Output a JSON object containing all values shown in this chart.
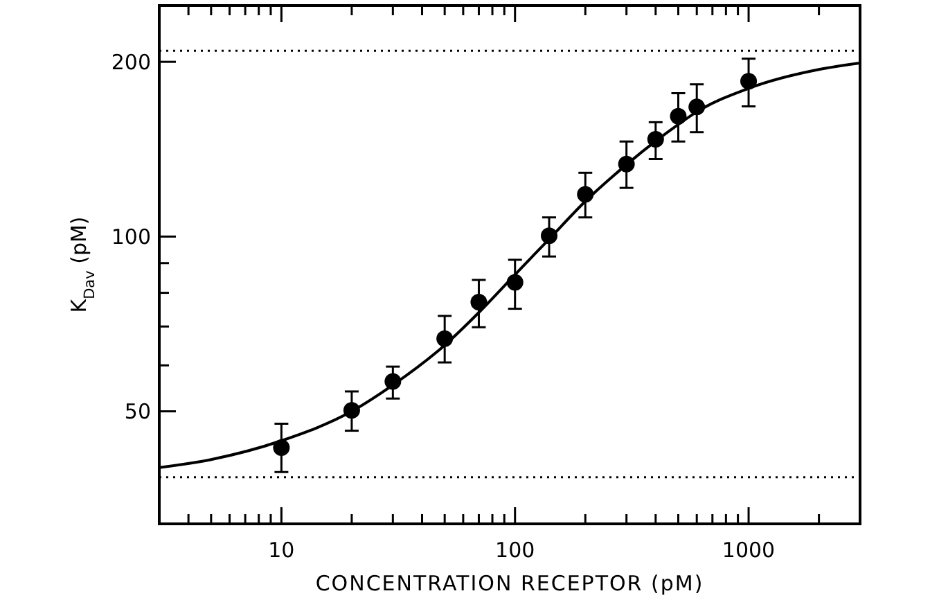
{
  "chart_data": {
    "type": "scatter",
    "xlabel": "CONCENTRATION RECEPTOR (pM)",
    "ylabel": "K$_{Dav}$ (pM)",
    "log": "xy",
    "marker": "circle",
    "xlim": [
      3,
      3000
    ],
    "ylim": [
      32,
      250
    ],
    "xticks": [
      {
        "value": 4,
        "label": null
      },
      {
        "value": 5,
        "label": null
      },
      {
        "value": 6,
        "label": null
      },
      {
        "value": 7,
        "label": null
      },
      {
        "value": 8,
        "label": null
      },
      {
        "value": 9,
        "label": null
      },
      10,
      {
        "value": 20,
        "label": null
      },
      {
        "value": 30,
        "label": null
      },
      {
        "value": 40,
        "label": null
      },
      {
        "value": 50,
        "label": null
      },
      {
        "value": 60,
        "label": null
      },
      {
        "value": 70,
        "label": null
      },
      {
        "value": 80,
        "label": null
      },
      {
        "value": 90,
        "label": null
      },
      100,
      {
        "value": 200,
        "label": null
      },
      {
        "value": 300,
        "label": null
      },
      {
        "value": 400,
        "label": null
      },
      {
        "value": 500,
        "label": null
      },
      {
        "value": 600,
        "label": null
      },
      {
        "value": 700,
        "label": null
      },
      {
        "value": 800,
        "label": null
      },
      {
        "value": 900,
        "label": null
      },
      1000,
      {
        "value": 2000,
        "label": null
      },
      {
        "value": 3000,
        "label": null
      }
    ],
    "yticks": [
      50,
      {
        "value": 60,
        "label": null
      },
      {
        "value": 70,
        "label": null
      },
      {
        "value": 80,
        "label": null
      },
      {
        "value": 90,
        "label": null
      },
      100,
      200
    ],
    "ref_lines": [
      {
        "axis": "y",
        "value": 209,
        "line_style": "dotted"
      },
      {
        "axis": "y",
        "value": 38.5,
        "line_style": "dotted"
      }
    ],
    "series": [
      {
        "color": "#000000",
        "x": [
          10,
          20,
          30,
          50,
          70,
          100,
          140,
          200,
          300,
          400,
          500,
          600,
          1000
        ],
        "values": [
          43.3,
          50.2,
          56.3,
          66.7,
          77.1,
          83.4,
          100.3,
          118.2,
          133.3,
          147.1,
          161.2,
          167.2,
          185.2
        ],
        "errors": [
          [
            39.3,
            47.6
          ],
          [
            46.3,
            54.1
          ],
          [
            52.6,
            59.7
          ],
          [
            60.7,
            73
          ],
          [
            69.8,
            84.2
          ],
          [
            75.1,
            91.2
          ],
          [
            92.4,
            107.9
          ],
          [
            107.9,
            128.8
          ],
          [
            121.3,
            145.8
          ],
          [
            136,
            157.4
          ],
          [
            145.8,
            176.6
          ],
          [
            151.3,
            182.9
          ],
          [
            167.6,
            202.5
          ]
        ]
      },
      {
        "type": "line",
        "color": "#000000",
        "marker": "none",
        "x": [
          3,
          5,
          10,
          20,
          30,
          50,
          70,
          100,
          140,
          200,
          300,
          400,
          500,
          600,
          1000,
          2000,
          3000
        ],
        "values": [
          40,
          41.3,
          44.5,
          50,
          55.5,
          65,
          74,
          86,
          99,
          115,
          133,
          146,
          156,
          164,
          180,
          194,
          199
        ]
      }
    ]
  }
}
